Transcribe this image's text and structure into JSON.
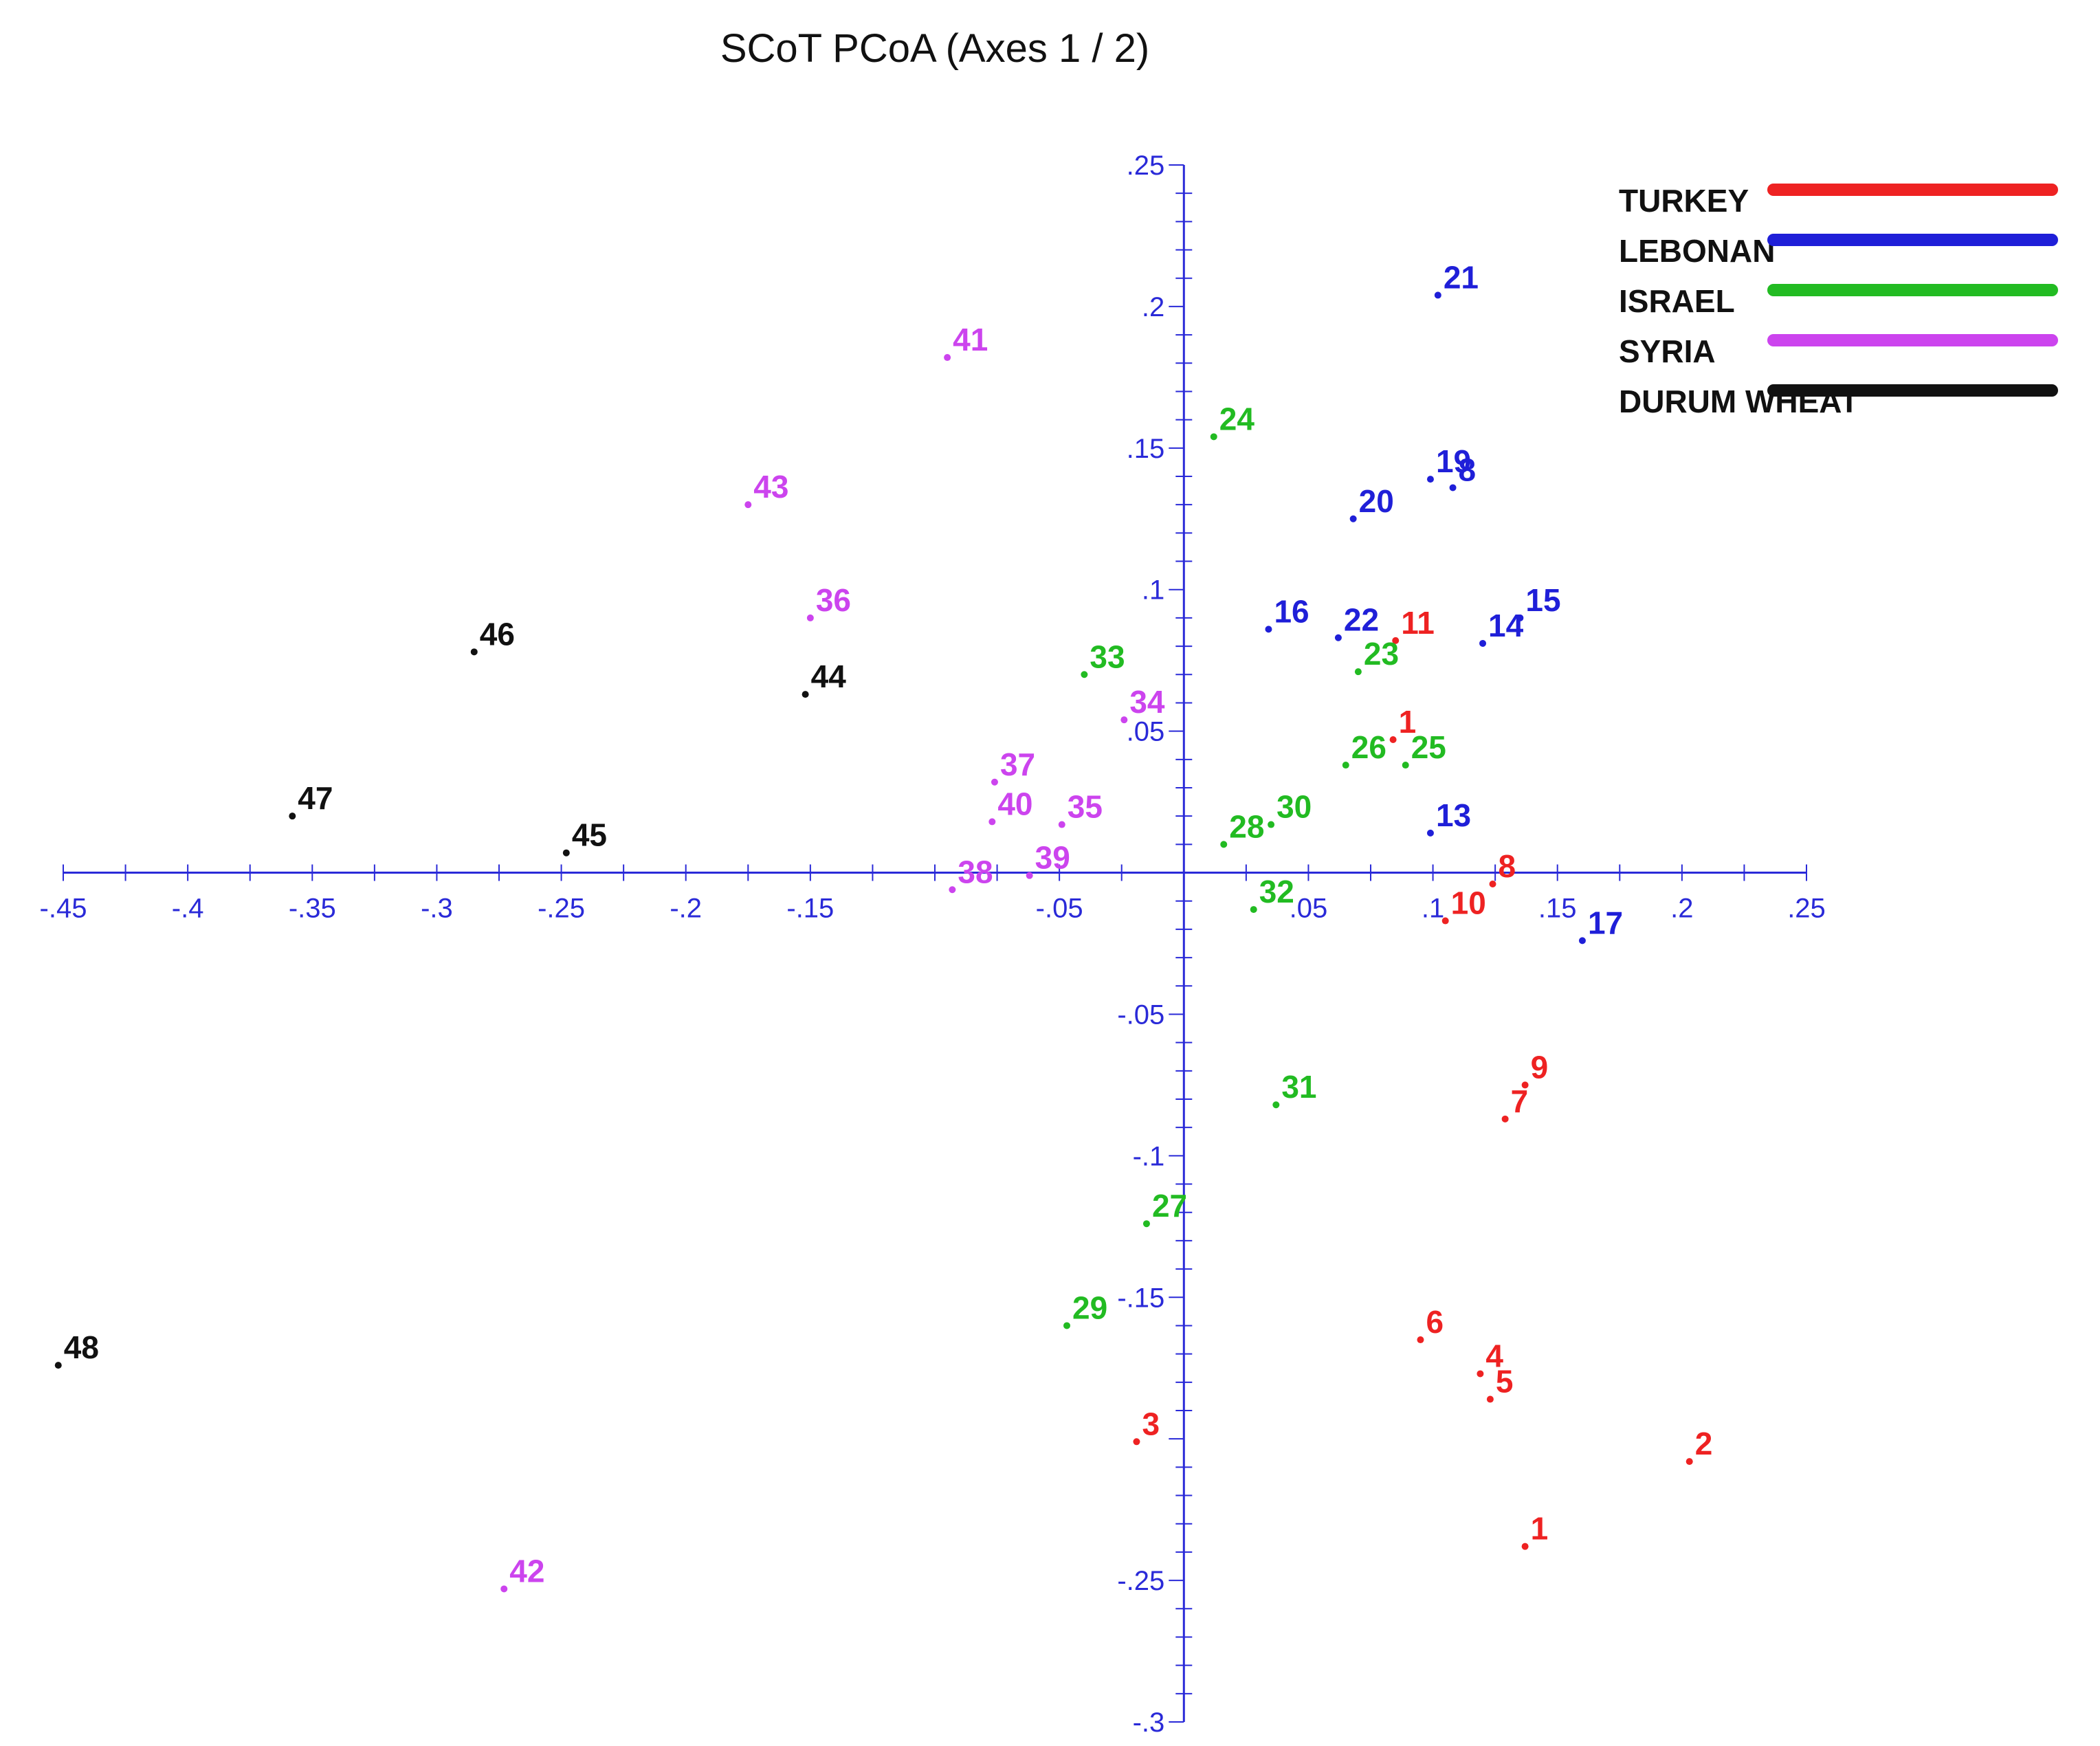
{
  "chart_data": {
    "type": "scatter",
    "title": "SCoT PCoA (Axes 1 / 2)",
    "xlabel": "",
    "ylabel": "",
    "xlim": [
      -0.45,
      0.25
    ],
    "ylim": [
      -0.3,
      0.25
    ],
    "x_ticks": [
      -0.45,
      -0.4,
      -0.35,
      -0.3,
      -0.25,
      -0.2,
      -0.15,
      -0.1,
      -0.05,
      0.05,
      0.1,
      0.15,
      0.2,
      0.25
    ],
    "x_tick_labels": [
      "-.45",
      "-.4",
      "-.35",
      "-.3",
      "-.25",
      "-.2",
      "-.15",
      "",
      "-.05",
      ".05",
      ".1",
      ".15",
      ".2",
      ".25"
    ],
    "y_ticks": [
      0.25,
      0.2,
      0.15,
      0.1,
      0.05,
      -0.05,
      -0.1,
      -0.15,
      -0.2,
      -0.25,
      -0.3
    ],
    "y_tick_labels": [
      ".25",
      ".2",
      ".15",
      ".1",
      ".05",
      "-.05",
      "-.1",
      "-.15",
      "",
      "-.25",
      "-.3"
    ],
    "grid": false,
    "legend_position": "top-right",
    "axis_color": "#2a2ad8",
    "series": [
      {
        "name": "TURKEY",
        "color": "#ee2222",
        "points": [
          {
            "label": "1",
            "x": 0.137,
            "y": -0.238
          },
          {
            "label": "2",
            "x": 0.203,
            "y": -0.208
          },
          {
            "label": "3",
            "x": -0.019,
            "y": -0.201
          },
          {
            "label": "4",
            "x": 0.119,
            "y": -0.177
          },
          {
            "label": "5",
            "x": 0.123,
            "y": -0.186
          },
          {
            "label": "6",
            "x": 0.095,
            "y": -0.165
          },
          {
            "label": "7",
            "x": 0.129,
            "y": -0.087
          },
          {
            "label": "9",
            "x": 0.137,
            "y": -0.075
          },
          {
            "label": "8",
            "x": 0.124,
            "y": -0.004
          },
          {
            "label": "10",
            "x": 0.105,
            "y": -0.017
          },
          {
            "label": "11",
            "x": 0.085,
            "y": 0.082
          },
          {
            "label": "1",
            "x": 0.084,
            "y": 0.047
          }
        ]
      },
      {
        "name": "LEBONAN",
        "color": "#1f1fd8",
        "points": [
          {
            "label": "21",
            "x": 0.102,
            "y": 0.204
          },
          {
            "label": "19",
            "x": 0.099,
            "y": 0.139
          },
          {
            "label": "8",
            "x": 0.108,
            "y": 0.136
          },
          {
            "label": "20",
            "x": 0.068,
            "y": 0.125
          },
          {
            "label": "16",
            "x": 0.034,
            "y": 0.086
          },
          {
            "label": "22",
            "x": 0.062,
            "y": 0.083
          },
          {
            "label": "14",
            "x": 0.12,
            "y": 0.081
          },
          {
            "label": "15",
            "x": 0.135,
            "y": 0.09
          },
          {
            "label": "13",
            "x": 0.099,
            "y": 0.014
          },
          {
            "label": "17",
            "x": 0.16,
            "y": -0.024
          }
        ]
      },
      {
        "name": "ISRAEL",
        "color": "#22bb22",
        "points": [
          {
            "label": "24",
            "x": 0.012,
            "y": 0.154
          },
          {
            "label": "23",
            "x": 0.07,
            "y": 0.071
          },
          {
            "label": "33",
            "x": -0.04,
            "y": 0.07
          },
          {
            "label": "26",
            "x": 0.065,
            "y": 0.038
          },
          {
            "label": "25",
            "x": 0.089,
            "y": 0.038
          },
          {
            "label": "30",
            "x": 0.035,
            "y": 0.017
          },
          {
            "label": "28",
            "x": 0.016,
            "y": 0.01
          },
          {
            "label": "32",
            "x": 0.028,
            "y": -0.013
          },
          {
            "label": "31",
            "x": 0.037,
            "y": -0.082
          },
          {
            "label": "27",
            "x": -0.015,
            "y": -0.124
          },
          {
            "label": "29",
            "x": -0.047,
            "y": -0.16
          }
        ]
      },
      {
        "name": "SYRIA",
        "color": "#cc44ee",
        "points": [
          {
            "label": "41",
            "x": -0.095,
            "y": 0.182
          },
          {
            "label": "43",
            "x": -0.175,
            "y": 0.13
          },
          {
            "label": "36",
            "x": -0.15,
            "y": 0.09
          },
          {
            "label": "34",
            "x": -0.024,
            "y": 0.054
          },
          {
            "label": "37",
            "x": -0.076,
            "y": 0.032
          },
          {
            "label": "40",
            "x": -0.077,
            "y": 0.018
          },
          {
            "label": "35",
            "x": -0.049,
            "y": 0.017
          },
          {
            "label": "39",
            "x": -0.062,
            "y": -0.001
          },
          {
            "label": "38",
            "x": -0.093,
            "y": -0.006
          },
          {
            "label": "42",
            "x": -0.273,
            "y": -0.253
          }
        ]
      },
      {
        "name": "DURUM WHEAT",
        "color": "#111111",
        "points": [
          {
            "label": "46",
            "x": -0.285,
            "y": 0.078
          },
          {
            "label": "44",
            "x": -0.152,
            "y": 0.063
          },
          {
            "label": "47",
            "x": -0.358,
            "y": 0.02
          },
          {
            "label": "45",
            "x": -0.248,
            "y": 0.007
          },
          {
            "label": "48",
            "x": -0.452,
            "y": -0.174
          }
        ]
      }
    ]
  }
}
